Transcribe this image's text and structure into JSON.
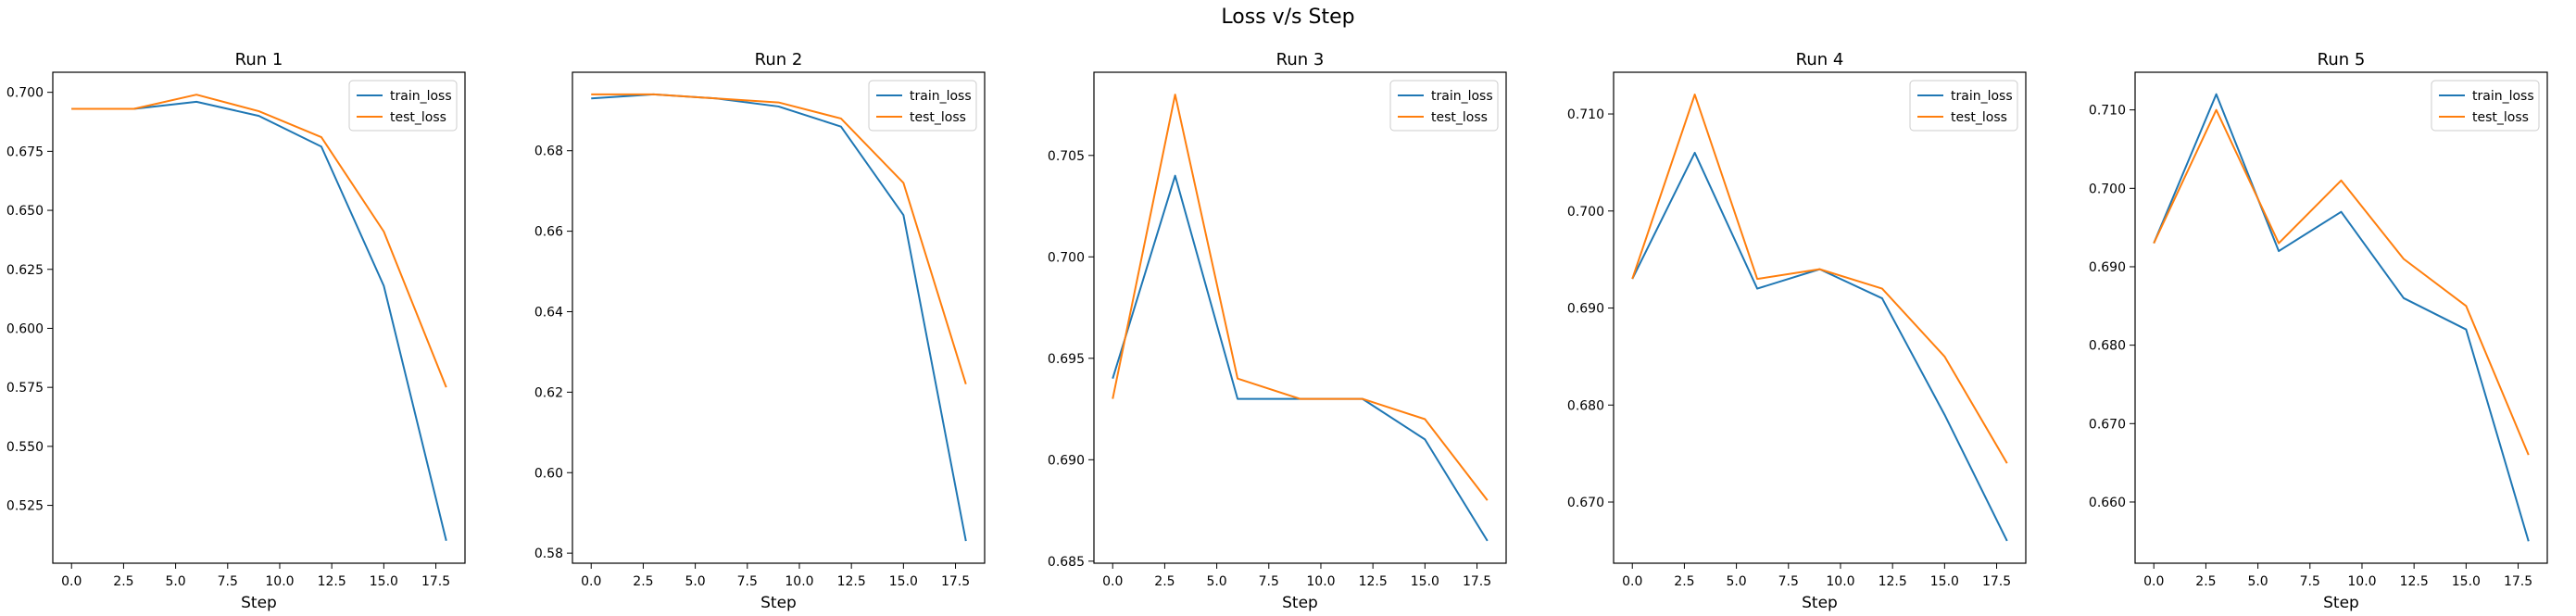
{
  "figure": {
    "suptitle": "Loss v/s Step",
    "colors": {
      "train_loss": "#1f77b4",
      "test_loss": "#ff7f0e"
    }
  },
  "chart_data": [
    {
      "type": "line",
      "title": "Run 1",
      "xlabel": "Step",
      "ylabel": "",
      "xlim": [
        -0.9,
        18.9
      ],
      "ylim": [
        0.5005,
        0.7085
      ],
      "xticks": [
        "0.0",
        "2.5",
        "5.0",
        "7.5",
        "10.0",
        "12.5",
        "15.0",
        "17.5"
      ],
      "yticks": [
        "0.525",
        "0.550",
        "0.575",
        "0.600",
        "0.625",
        "0.650",
        "0.675",
        "0.700"
      ],
      "x": [
        0,
        3,
        6,
        9,
        12,
        15,
        18
      ],
      "series": [
        {
          "name": "train_loss",
          "values": [
            0.693,
            0.693,
            0.696,
            0.69,
            0.677,
            0.618,
            0.51
          ]
        },
        {
          "name": "test_loss",
          "values": [
            0.693,
            0.693,
            0.699,
            0.692,
            0.681,
            0.641,
            0.575
          ]
        }
      ],
      "legend": "top-right",
      "grid": false
    },
    {
      "type": "line",
      "title": "Run 2",
      "xlabel": "Step",
      "ylabel": "",
      "xlim": [
        -0.9,
        18.9
      ],
      "ylim": [
        0.5775,
        0.6995
      ],
      "xticks": [
        "0.0",
        "2.5",
        "5.0",
        "7.5",
        "10.0",
        "12.5",
        "15.0",
        "17.5"
      ],
      "yticks": [
        "0.58",
        "0.60",
        "0.62",
        "0.64",
        "0.66",
        "0.68"
      ],
      "x": [
        0,
        3,
        6,
        9,
        12,
        15,
        18
      ],
      "series": [
        {
          "name": "train_loss",
          "values": [
            0.693,
            0.694,
            0.693,
            0.691,
            0.686,
            0.664,
            0.583
          ]
        },
        {
          "name": "test_loss",
          "values": [
            0.694,
            0.694,
            0.693,
            0.692,
            0.688,
            0.672,
            0.622
          ]
        }
      ],
      "legend": "top-right",
      "grid": false
    },
    {
      "type": "line",
      "title": "Run 3",
      "xlabel": "Step",
      "ylabel": "",
      "xlim": [
        -0.9,
        18.9
      ],
      "ylim": [
        0.6849,
        0.7091
      ],
      "xticks": [
        "0.0",
        "2.5",
        "5.0",
        "7.5",
        "10.0",
        "12.5",
        "15.0",
        "17.5"
      ],
      "yticks": [
        "0.685",
        "0.690",
        "0.695",
        "0.700",
        "0.705"
      ],
      "x": [
        0,
        3,
        6,
        9,
        12,
        15,
        18
      ],
      "series": [
        {
          "name": "train_loss",
          "values": [
            0.694,
            0.704,
            0.693,
            0.693,
            0.693,
            0.691,
            0.686
          ]
        },
        {
          "name": "test_loss",
          "values": [
            0.693,
            0.708,
            0.694,
            0.693,
            0.693,
            0.692,
            0.688
          ]
        }
      ],
      "legend": "top-right",
      "grid": false
    },
    {
      "type": "line",
      "title": "Run 4",
      "xlabel": "Step",
      "ylabel": "",
      "xlim": [
        -0.9,
        18.9
      ],
      "ylim": [
        0.6637,
        0.7143
      ],
      "xticks": [
        "0.0",
        "2.5",
        "5.0",
        "7.5",
        "10.0",
        "12.5",
        "15.0",
        "17.5"
      ],
      "yticks": [
        "0.670",
        "0.680",
        "0.690",
        "0.700",
        "0.710"
      ],
      "x": [
        0,
        3,
        6,
        9,
        12,
        15,
        18
      ],
      "series": [
        {
          "name": "train_loss",
          "values": [
            0.693,
            0.706,
            0.692,
            0.694,
            0.691,
            0.679,
            0.666
          ]
        },
        {
          "name": "test_loss",
          "values": [
            0.693,
            0.712,
            0.693,
            0.694,
            0.692,
            0.685,
            0.674
          ]
        }
      ],
      "legend": "top-right",
      "grid": false
    },
    {
      "type": "line",
      "title": "Run 5",
      "xlabel": "Step",
      "ylabel": "",
      "xlim": [
        -0.9,
        18.9
      ],
      "ylim": [
        0.6522,
        0.7148
      ],
      "xticks": [
        "0.0",
        "2.5",
        "5.0",
        "7.5",
        "10.0",
        "12.5",
        "15.0",
        "17.5"
      ],
      "yticks": [
        "0.660",
        "0.670",
        "0.680",
        "0.690",
        "0.700",
        "0.710"
      ],
      "x": [
        0,
        3,
        6,
        9,
        12,
        15,
        18
      ],
      "series": [
        {
          "name": "train_loss",
          "values": [
            0.693,
            0.712,
            0.692,
            0.697,
            0.686,
            0.682,
            0.655
          ]
        },
        {
          "name": "test_loss",
          "values": [
            0.693,
            0.71,
            0.693,
            0.701,
            0.691,
            0.685,
            0.666
          ]
        }
      ],
      "legend": "top-right",
      "grid": false
    }
  ]
}
